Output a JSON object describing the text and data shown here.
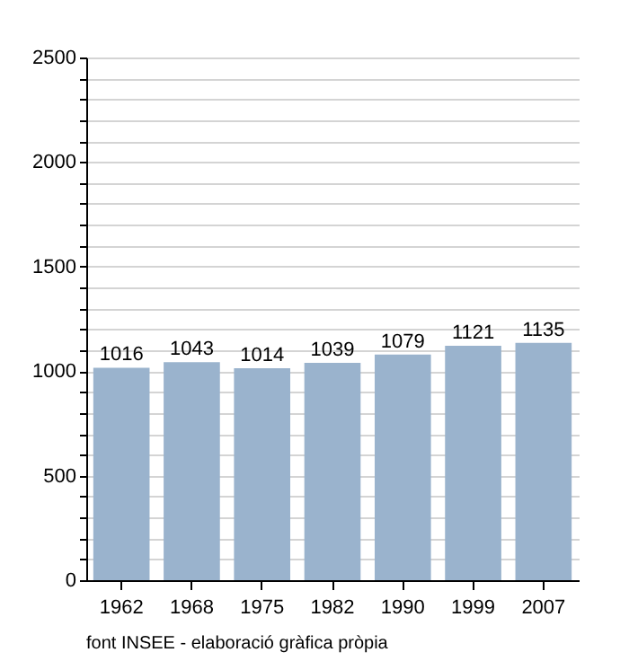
{
  "chart_data": {
    "type": "bar",
    "categories": [
      "1962",
      "1968",
      "1975",
      "1982",
      "1990",
      "1999",
      "2007"
    ],
    "values": [
      1016,
      1043,
      1014,
      1039,
      1079,
      1121,
      1135
    ],
    "color": "#9ab3cd",
    "ylim": [
      0,
      2500
    ],
    "yticks": [
      0,
      {
        "value": 100,
        "label": null
      },
      {
        "value": 200,
        "label": null
      },
      {
        "value": 300,
        "label": null
      },
      {
        "value": 400,
        "label": null
      },
      500,
      {
        "value": 600,
        "label": null
      },
      {
        "value": 700,
        "label": null
      },
      {
        "value": 800,
        "label": null
      },
      {
        "value": 900,
        "label": null
      },
      1000,
      {
        "value": 1100,
        "label": null
      },
      {
        "value": 1200,
        "label": null
      },
      {
        "value": 1300,
        "label": null
      },
      {
        "value": 1400,
        "label": null
      },
      1500,
      {
        "value": 1600,
        "label": null
      },
      {
        "value": 1700,
        "label": null
      },
      {
        "value": 1800,
        "label": null
      },
      {
        "value": 1900,
        "label": null
      },
      2000,
      {
        "value": 2100,
        "label": null
      },
      {
        "value": 2200,
        "label": null
      },
      {
        "value": 2300,
        "label": null
      },
      {
        "value": 2400,
        "label": null
      },
      2500
    ],
    "grid": "y",
    "data_labels": true,
    "annotations": [
      "font INSEE - elaboració gràfica pròpia"
    ]
  }
}
